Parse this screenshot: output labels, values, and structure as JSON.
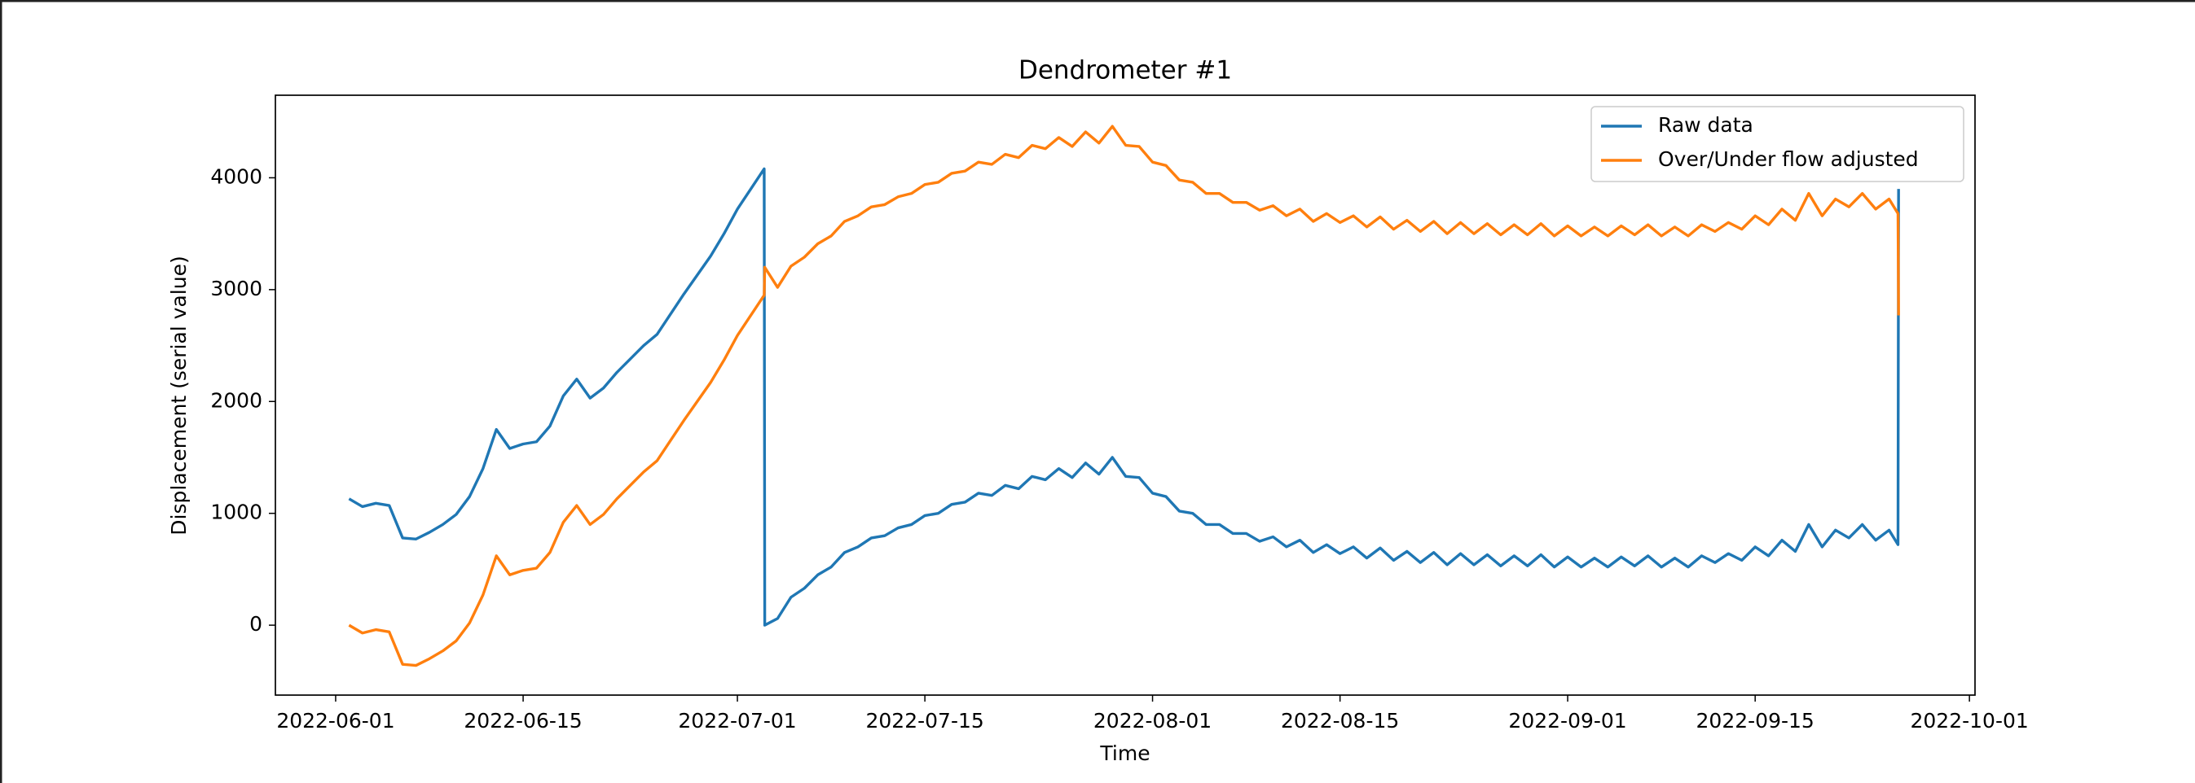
{
  "chart_data": {
    "type": "line",
    "title": "Dendrometer #1",
    "x_label": "Time",
    "y_label": "Displacement (serial value)",
    "legend": "upper right",
    "xlim": [
      "2022-05-27T12:00",
      "2022-10-01T10:00"
    ],
    "xticks": [
      "2022-06-01",
      "2022-06-15",
      "2022-07-01",
      "2022-07-15",
      "2022-08-01",
      "2022-08-15",
      "2022-09-01",
      "2022-09-15",
      "2022-10-01"
    ],
    "ylim": [
      -625,
      4738
    ],
    "yticks": [
      0,
      1000,
      2000,
      3000,
      4000
    ],
    "x": [
      "2022-06-02",
      "2022-06-03",
      "2022-06-04",
      "2022-06-05",
      "2022-06-06",
      "2022-06-07",
      "2022-06-08",
      "2022-06-09",
      "2022-06-10",
      "2022-06-11",
      "2022-06-12",
      "2022-06-13",
      "2022-06-14",
      "2022-06-15",
      "2022-06-16",
      "2022-06-17",
      "2022-06-18",
      "2022-06-19",
      "2022-06-20",
      "2022-06-21",
      "2022-06-22",
      "2022-06-23",
      "2022-06-24",
      "2022-06-25",
      "2022-06-26",
      "2022-06-27",
      "2022-06-28",
      "2022-06-29",
      "2022-06-30",
      "2022-07-01",
      "2022-07-02",
      "2022-07-03",
      "2022-07-03T01:00",
      "2022-07-04",
      "2022-07-05",
      "2022-07-06",
      "2022-07-07",
      "2022-07-08",
      "2022-07-09",
      "2022-07-10",
      "2022-07-11",
      "2022-07-12",
      "2022-07-13",
      "2022-07-14",
      "2022-07-15",
      "2022-07-16",
      "2022-07-17",
      "2022-07-18",
      "2022-07-19",
      "2022-07-20",
      "2022-07-21",
      "2022-07-22",
      "2022-07-23",
      "2022-07-24",
      "2022-07-25",
      "2022-07-26",
      "2022-07-27",
      "2022-07-28",
      "2022-07-29",
      "2022-07-30",
      "2022-07-31",
      "2022-08-01",
      "2022-08-02",
      "2022-08-03",
      "2022-08-04",
      "2022-08-05",
      "2022-08-06",
      "2022-08-07",
      "2022-08-08",
      "2022-08-09",
      "2022-08-10",
      "2022-08-11",
      "2022-08-12",
      "2022-08-13",
      "2022-08-14",
      "2022-08-15",
      "2022-08-16",
      "2022-08-17",
      "2022-08-18",
      "2022-08-19",
      "2022-08-20",
      "2022-08-21",
      "2022-08-22",
      "2022-08-23",
      "2022-08-24",
      "2022-08-25",
      "2022-08-26",
      "2022-08-27",
      "2022-08-28",
      "2022-08-29",
      "2022-08-30",
      "2022-08-31",
      "2022-09-01",
      "2022-09-02",
      "2022-09-03",
      "2022-09-04",
      "2022-09-05",
      "2022-09-06",
      "2022-09-07",
      "2022-09-08",
      "2022-09-09",
      "2022-09-10",
      "2022-09-11",
      "2022-09-12",
      "2022-09-13",
      "2022-09-14",
      "2022-09-15",
      "2022-09-16",
      "2022-09-17",
      "2022-09-18",
      "2022-09-19",
      "2022-09-20",
      "2022-09-21",
      "2022-09-22",
      "2022-09-23",
      "2022-09-24",
      "2022-09-25",
      "2022-09-25T16:00",
      "2022-09-25T17:00"
    ],
    "series": [
      {
        "name": "Raw data",
        "color": "#1f77b4",
        "values": [
          1130,
          1060,
          1090,
          1070,
          780,
          770,
          830,
          900,
          990,
          1150,
          1400,
          1750,
          1580,
          1620,
          1640,
          1780,
          2050,
          2200,
          2030,
          2120,
          2260,
          2380,
          2500,
          2600,
          2780,
          2960,
          3130,
          3300,
          3500,
          3720,
          3900,
          4080,
          0,
          60,
          250,
          330,
          450,
          520,
          650,
          700,
          780,
          800,
          870,
          900,
          980,
          1000,
          1080,
          1100,
          1180,
          1160,
          1250,
          1220,
          1330,
          1300,
          1400,
          1320,
          1450,
          1350,
          1500,
          1330,
          1320,
          1180,
          1150,
          1020,
          1000,
          900,
          900,
          820,
          820,
          750,
          790,
          700,
          760,
          650,
          720,
          640,
          700,
          600,
          690,
          580,
          660,
          560,
          650,
          540,
          640,
          540,
          630,
          530,
          620,
          530,
          630,
          520,
          610,
          520,
          600,
          520,
          610,
          530,
          620,
          520,
          600,
          520,
          620,
          560,
          640,
          580,
          700,
          620,
          760,
          660,
          900,
          700,
          850,
          780,
          900,
          760,
          850,
          720,
          3900
        ]
      },
      {
        "name": "Over/Under flow adjusted",
        "color": "#ff7f0e",
        "values": [
          0,
          -70,
          -40,
          -60,
          -350,
          -360,
          -300,
          -230,
          -140,
          20,
          270,
          620,
          450,
          490,
          510,
          650,
          920,
          1070,
          900,
          990,
          1130,
          1250,
          1370,
          1470,
          1650,
          1830,
          2000,
          2170,
          2370,
          2590,
          2770,
          2950,
          3200,
          3020,
          3210,
          3290,
          3410,
          3480,
          3610,
          3660,
          3740,
          3760,
          3830,
          3860,
          3940,
          3960,
          4040,
          4060,
          4140,
          4120,
          4210,
          4180,
          4290,
          4260,
          4360,
          4280,
          4410,
          4310,
          4460,
          4290,
          4280,
          4140,
          4110,
          3980,
          3960,
          3860,
          3860,
          3780,
          3780,
          3710,
          3750,
          3660,
          3720,
          3610,
          3680,
          3600,
          3660,
          3560,
          3650,
          3540,
          3620,
          3520,
          3610,
          3500,
          3600,
          3500,
          3590,
          3490,
          3580,
          3490,
          3590,
          3480,
          3570,
          3480,
          3560,
          3480,
          3570,
          3490,
          3580,
          3480,
          3560,
          3480,
          3580,
          3520,
          3600,
          3540,
          3660,
          3580,
          3720,
          3620,
          3860,
          3660,
          3810,
          3740,
          3860,
          3720,
          3810,
          3680,
          2770
        ]
      }
    ]
  }
}
